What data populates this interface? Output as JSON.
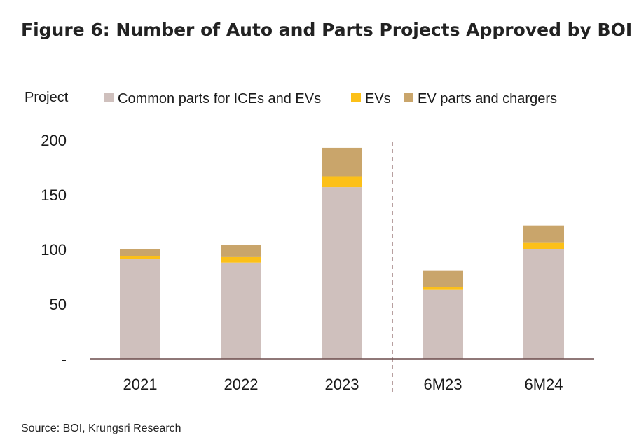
{
  "title": "Figure 6: Number of Auto and Parts Projects Approved by BOI",
  "source": "Source: BOI, Krungsri Research",
  "colors": {
    "common": "#cfc0bd",
    "evs": "#fcc018",
    "ev_parts": "#c9a56b",
    "axis": "#6b4b4b",
    "divider": "#a08080"
  },
  "chart_data": {
    "type": "bar",
    "stacked": true,
    "ylabel": "Project",
    "categories": [
      "2021",
      "2022",
      "2023",
      "6M23",
      "6M24"
    ],
    "series": [
      {
        "name": "Common parts for ICEs and EVs",
        "values": [
          91,
          88,
          157,
          63,
          100
        ]
      },
      {
        "name": "EVs",
        "values": [
          3,
          5,
          10,
          3,
          6
        ]
      },
      {
        "name": "EV parts and chargers",
        "values": [
          6,
          11,
          26,
          15,
          16
        ]
      }
    ],
    "ylim": [
      0,
      200
    ],
    "yticks": [
      "-",
      "50",
      "100",
      "150",
      "200"
    ],
    "ytick_values": [
      0,
      50,
      100,
      150,
      200
    ],
    "grid": false,
    "legend_position": "top",
    "divider_after_category": 2
  }
}
